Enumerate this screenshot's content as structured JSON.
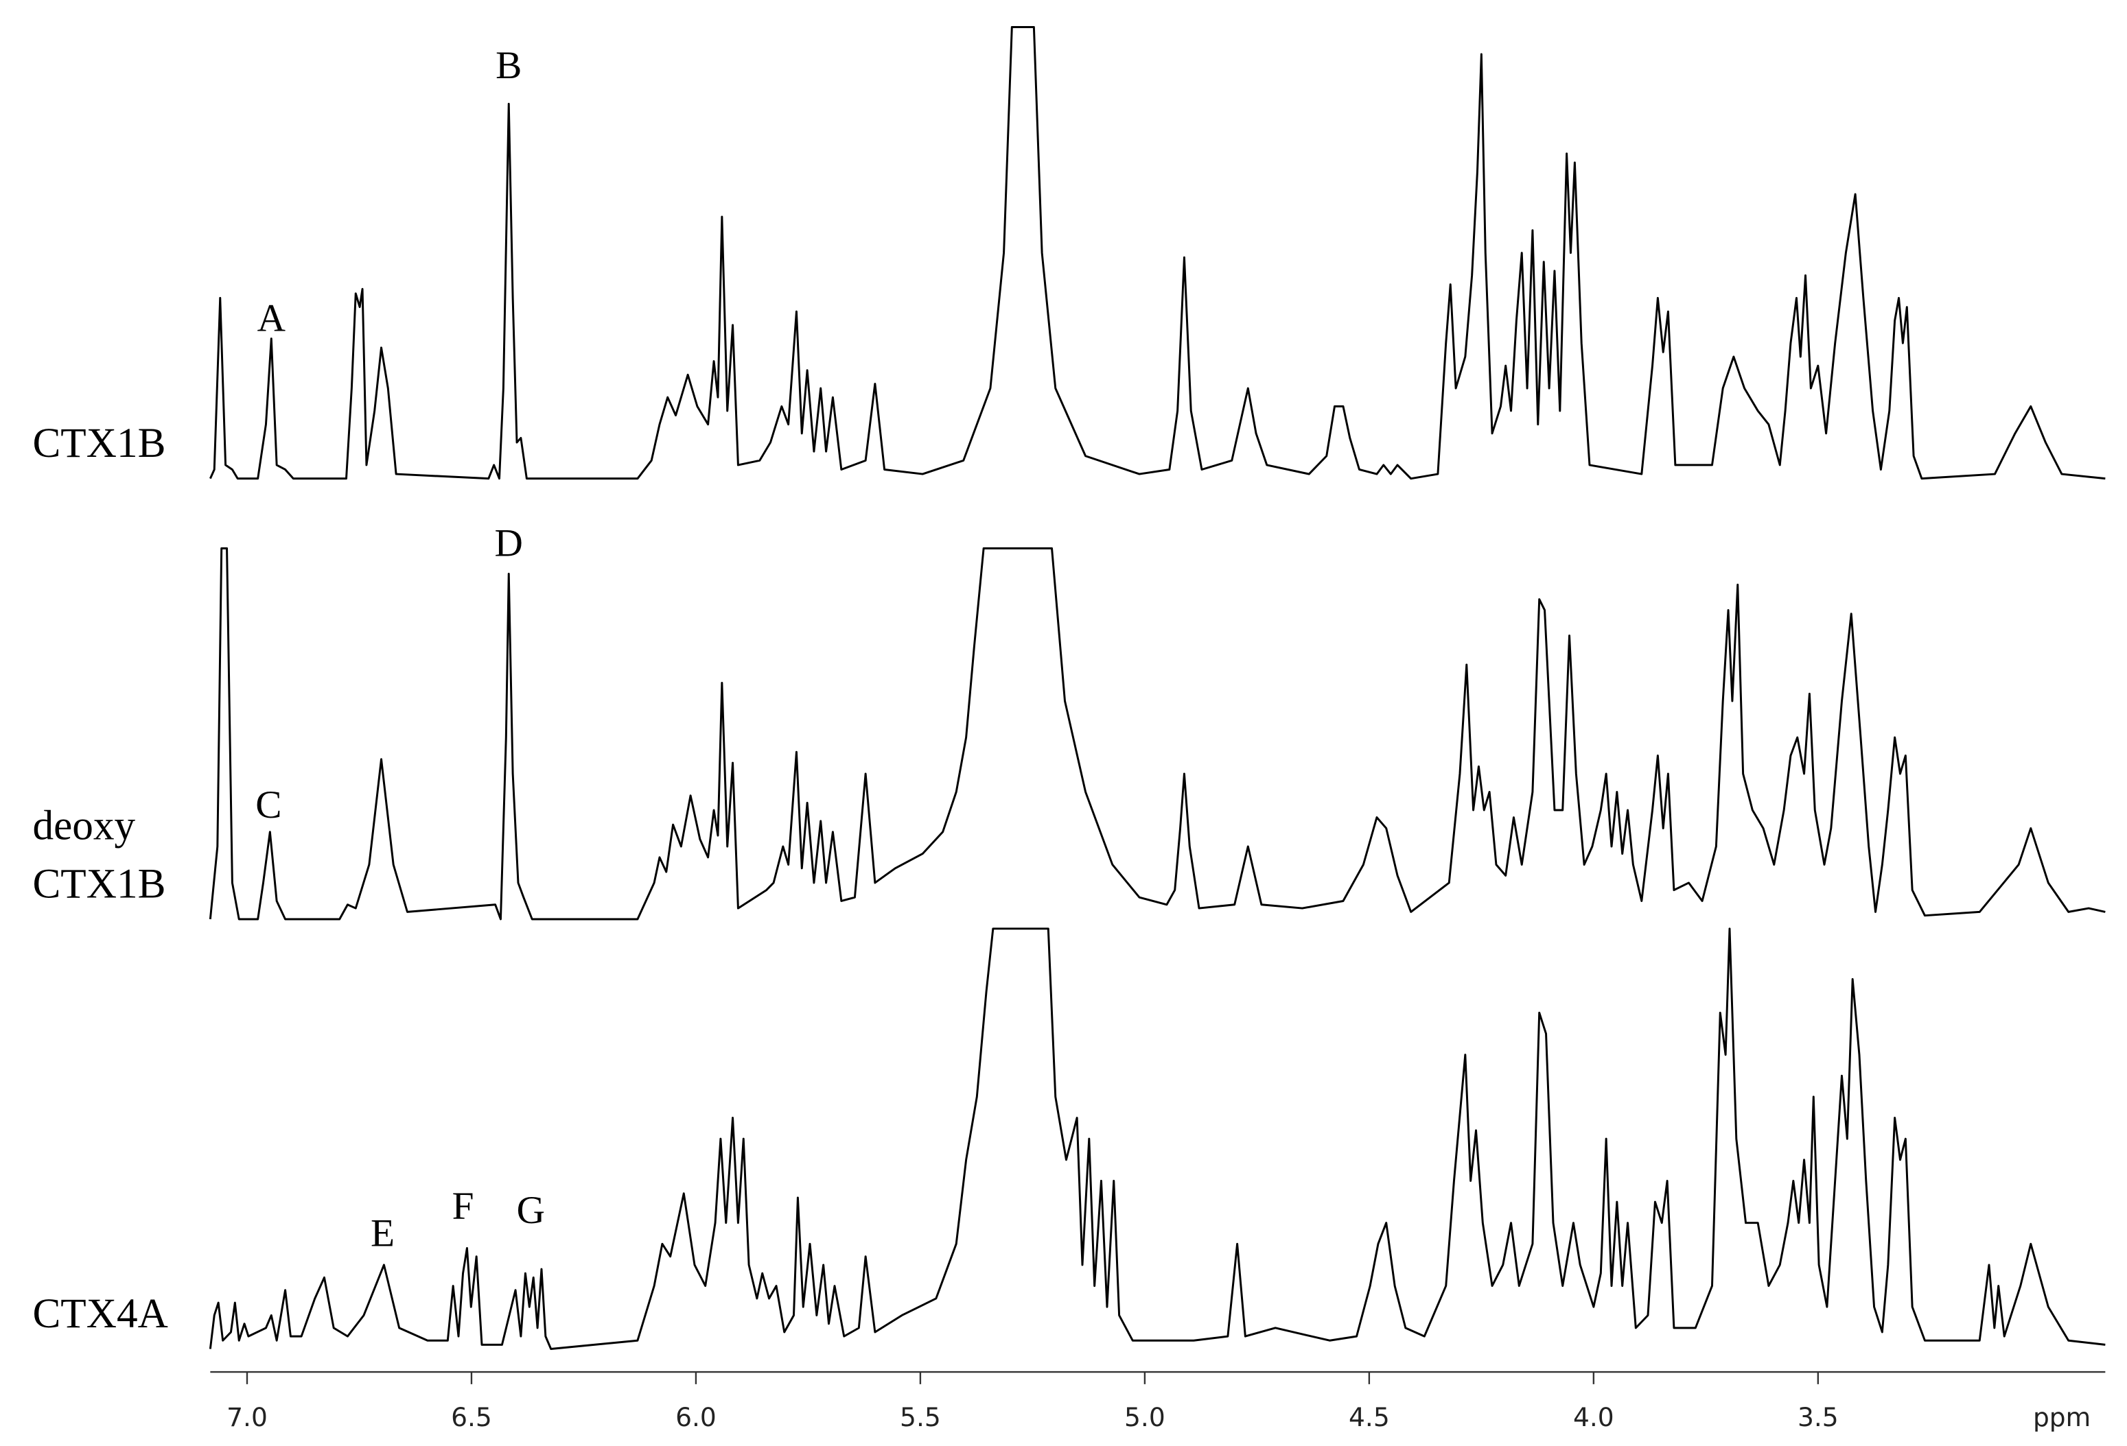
{
  "chart_data": [
    {
      "type": "line",
      "label": [
        "CTX1B"
      ],
      "color": "#000000",
      "xlim": [
        7.082,
        2.86
      ],
      "ylim": [
        0,
        100
      ],
      "annotations": [
        {
          "text": "A",
          "x": 6.946,
          "y": 36
        },
        {
          "text": "B",
          "x": 6.417,
          "y": 92
        }
      ],
      "x": [
        7.082,
        7.073,
        7.06,
        7.048,
        7.033,
        7.021,
        6.976,
        6.958,
        6.946,
        6.934,
        6.915,
        6.897,
        6.779,
        6.767,
        6.758,
        6.749,
        6.743,
        6.734,
        6.716,
        6.701,
        6.686,
        6.668,
        6.462,
        6.45,
        6.438,
        6.429,
        6.417,
        6.408,
        6.399,
        6.39,
        6.377,
        6.13,
        6.099,
        6.081,
        6.063,
        6.045,
        6.018,
        5.997,
        5.973,
        5.96,
        5.951,
        5.942,
        5.93,
        5.918,
        5.906,
        5.858,
        5.834,
        5.809,
        5.794,
        5.776,
        5.764,
        5.752,
        5.737,
        5.722,
        5.71,
        5.695,
        5.676,
        5.622,
        5.601,
        5.58,
        5.495,
        5.404,
        5.344,
        5.314,
        5.296,
        5.247,
        5.229,
        5.199,
        5.132,
        5.012,
        4.945,
        4.927,
        4.912,
        4.897,
        4.873,
        4.806,
        4.788,
        4.77,
        4.752,
        4.728,
        4.634,
        4.595,
        4.577,
        4.558,
        4.543,
        4.522,
        4.483,
        4.468,
        4.452,
        4.437,
        4.407,
        4.347,
        4.329,
        4.319,
        4.307,
        4.286,
        4.271,
        4.259,
        4.25,
        4.241,
        4.226,
        4.207,
        4.196,
        4.184,
        4.172,
        4.16,
        4.148,
        4.136,
        4.124,
        4.111,
        4.099,
        4.087,
        4.075,
        4.06,
        4.051,
        4.042,
        4.027,
        4.009,
        3.893,
        3.869,
        3.857,
        3.845,
        3.834,
        3.818,
        3.736,
        3.712,
        3.688,
        3.664,
        3.634,
        3.61,
        3.585,
        3.573,
        3.561,
        3.548,
        3.539,
        3.528,
        3.516,
        3.5,
        3.482,
        3.462,
        3.438,
        3.417,
        3.399,
        3.378,
        3.36,
        3.341,
        3.329,
        3.32,
        3.311,
        3.302,
        3.287,
        3.269,
        3.106,
        3.061,
        3.026,
        2.993,
        2.957,
        2.86
      ],
      "values": [
        0,
        2,
        40,
        3,
        2,
        0,
        0,
        12,
        31,
        3,
        2,
        0,
        0,
        20,
        41,
        38,
        42,
        3,
        15,
        29,
        20,
        1,
        0,
        3,
        0,
        20,
        83,
        40,
        8,
        9,
        0,
        0,
        4,
        12,
        18,
        14,
        23,
        16,
        12,
        26,
        18,
        58,
        15,
        34,
        3,
        4,
        8,
        16,
        12,
        37,
        10,
        24,
        6,
        20,
        6,
        18,
        2,
        4,
        21,
        2,
        1,
        4,
        20,
        50,
        100,
        100,
        50,
        20,
        5,
        1,
        2,
        15,
        49,
        15,
        2,
        4,
        12,
        20,
        10,
        3,
        1,
        5,
        16,
        16,
        9,
        2,
        1,
        3,
        1,
        3,
        0,
        1,
        30,
        43,
        20,
        27,
        45,
        68,
        94,
        50,
        10,
        16,
        25,
        15,
        35,
        50,
        20,
        55,
        12,
        48,
        20,
        46,
        15,
        72,
        50,
        70,
        30,
        3,
        1,
        25,
        40,
        28,
        37,
        3,
        3,
        20,
        27,
        20,
        15,
        12,
        3,
        15,
        30,
        40,
        27,
        45,
        20,
        25,
        10,
        30,
        50,
        63,
        40,
        15,
        2,
        15,
        35,
        40,
        30,
        38,
        5,
        0,
        1,
        10,
        16,
        8,
        1,
        0
      ]
    },
    {
      "type": "line",
      "label": [
        "deoxy",
        "CTX1B"
      ],
      "color": "#000000",
      "xlim": [
        7.082,
        2.86
      ],
      "ylim": [
        0,
        110
      ],
      "annotations": [
        {
          "text": "C",
          "x": 6.952,
          "y": 32
        },
        {
          "text": "D",
          "x": 6.417,
          "y": 104
        }
      ],
      "x": [
        7.082,
        7.066,
        7.057,
        7.045,
        7.033,
        7.018,
        6.976,
        6.964,
        6.949,
        6.934,
        6.915,
        6.794,
        6.776,
        6.758,
        6.728,
        6.701,
        6.674,
        6.643,
        6.447,
        6.435,
        6.423,
        6.417,
        6.408,
        6.396,
        6.384,
        6.365,
        6.13,
        6.093,
        6.081,
        6.066,
        6.051,
        6.033,
        6.012,
        5.991,
        5.973,
        5.96,
        5.951,
        5.942,
        5.93,
        5.918,
        5.906,
        5.843,
        5.827,
        5.806,
        5.794,
        5.776,
        5.764,
        5.752,
        5.737,
        5.722,
        5.71,
        5.695,
        5.676,
        5.646,
        5.622,
        5.601,
        5.556,
        5.495,
        5.45,
        5.42,
        5.398,
        5.38,
        5.359,
        5.207,
        5.178,
        5.132,
        5.072,
        5.012,
        4.951,
        4.933,
        4.921,
        4.912,
        4.9,
        4.879,
        4.8,
        4.77,
        4.74,
        4.649,
        4.558,
        4.513,
        4.483,
        4.462,
        4.437,
        4.407,
        4.322,
        4.298,
        4.283,
        4.268,
        4.256,
        4.244,
        4.232,
        4.217,
        4.196,
        4.178,
        4.16,
        4.136,
        4.121,
        4.109,
        4.099,
        4.087,
        4.069,
        4.054,
        4.039,
        4.021,
        4.003,
        3.984,
        3.972,
        3.96,
        3.948,
        3.936,
        3.924,
        3.912,
        3.893,
        3.869,
        3.857,
        3.845,
        3.834,
        3.821,
        3.788,
        3.758,
        3.727,
        3.712,
        3.7,
        3.691,
        3.679,
        3.667,
        3.646,
        3.622,
        3.598,
        3.576,
        3.561,
        3.546,
        3.531,
        3.519,
        3.507,
        3.486,
        3.471,
        3.447,
        3.426,
        3.405,
        3.387,
        3.372,
        3.357,
        3.344,
        3.329,
        3.317,
        3.305,
        3.29,
        3.262,
        3.14,
        3.053,
        3.026,
        2.987,
        2.942,
        2.897,
        2.86
      ],
      "values": [
        0,
        20,
        102,
        102,
        10,
        0,
        0,
        10,
        24,
        5,
        0,
        0,
        4,
        3,
        15,
        44,
        15,
        2,
        4,
        0,
        50,
        95,
        40,
        10,
        6,
        0,
        0,
        10,
        17,
        13,
        26,
        20,
        34,
        22,
        17,
        30,
        23,
        65,
        20,
        43,
        3,
        8,
        10,
        20,
        15,
        46,
        14,
        32,
        10,
        27,
        10,
        24,
        5,
        6,
        40,
        10,
        14,
        18,
        24,
        35,
        50,
        75,
        102,
        102,
        60,
        35,
        15,
        6,
        4,
        8,
        25,
        40,
        20,
        3,
        4,
        20,
        4,
        3,
        5,
        15,
        28,
        25,
        12,
        2,
        10,
        40,
        70,
        30,
        42,
        30,
        35,
        15,
        12,
        28,
        15,
        35,
        88,
        85,
        60,
        30,
        30,
        78,
        40,
        15,
        20,
        30,
        40,
        20,
        35,
        18,
        30,
        15,
        5,
        30,
        45,
        25,
        40,
        8,
        10,
        5,
        20,
        60,
        85,
        60,
        92,
        40,
        30,
        25,
        15,
        30,
        45,
        50,
        40,
        62,
        30,
        15,
        25,
        60,
        84,
        50,
        20,
        2,
        15,
        30,
        50,
        40,
        45,
        8,
        1,
        2,
        15,
        25,
        10,
        2,
        3,
        2
      ]
    },
    {
      "type": "line",
      "label": [
        "CTX4A"
      ],
      "color": "#000000",
      "xlim": [
        7.082,
        2.86
      ],
      "ylim": [
        0,
        100
      ],
      "annotations": [
        {
          "text": "E",
          "x": 6.698,
          "y": 28
        },
        {
          "text": "F",
          "x": 6.519,
          "y": 34.5
        },
        {
          "text": "G",
          "x": 6.368,
          "y": 33.5
        }
      ],
      "xlabel": "ppm",
      "xticks": [
        {
          "value": 7,
          "label": "7.0"
        },
        6.5,
        {
          "value": 6,
          "label": "6.0"
        },
        5.5,
        {
          "value": 5,
          "label": "5.0"
        },
        4.5,
        {
          "value": 4,
          "label": "4.0"
        },
        3.5
      ],
      "x": [
        7.082,
        7.073,
        7.064,
        7.054,
        7.036,
        7.027,
        7.018,
        7.006,
        6.997,
        6.958,
        6.946,
        6.934,
        6.915,
        6.903,
        6.879,
        6.849,
        6.828,
        6.807,
        6.776,
        6.74,
        6.695,
        6.661,
        6.598,
        6.553,
        6.541,
        6.529,
        6.519,
        6.51,
        6.501,
        6.489,
        6.477,
        6.432,
        6.402,
        6.39,
        6.38,
        6.371,
        6.362,
        6.353,
        6.344,
        6.335,
        6.323,
        6.13,
        6.093,
        6.075,
        6.057,
        6.027,
        6.003,
        5.979,
        5.957,
        5.945,
        5.933,
        5.918,
        5.906,
        5.894,
        5.882,
        5.864,
        5.852,
        5.837,
        5.821,
        5.803,
        5.782,
        5.773,
        5.761,
        5.746,
        5.731,
        5.716,
        5.704,
        5.691,
        5.67,
        5.637,
        5.622,
        5.601,
        5.541,
        5.465,
        5.42,
        5.398,
        5.374,
        5.353,
        5.338,
        5.215,
        5.199,
        5.175,
        5.163,
        5.151,
        5.139,
        5.124,
        5.112,
        5.097,
        5.084,
        5.069,
        5.057,
        5.027,
        4.951,
        4.891,
        4.815,
        4.794,
        4.776,
        4.709,
        4.588,
        4.528,
        4.498,
        4.48,
        4.462,
        4.443,
        4.419,
        4.377,
        4.329,
        4.311,
        4.286,
        4.274,
        4.262,
        4.247,
        4.226,
        4.202,
        4.184,
        4.166,
        4.136,
        4.121,
        4.106,
        4.09,
        4.069,
        4.045,
        4.03,
        4.0,
        3.984,
        3.972,
        3.96,
        3.948,
        3.936,
        3.924,
        3.906,
        3.879,
        3.863,
        3.848,
        3.836,
        3.821,
        3.773,
        3.736,
        3.718,
        3.706,
        3.697,
        3.682,
        3.661,
        3.634,
        3.61,
        3.585,
        3.567,
        3.555,
        3.543,
        3.531,
        3.519,
        3.51,
        3.498,
        3.48,
        3.462,
        3.447,
        3.435,
        3.423,
        3.408,
        3.393,
        3.375,
        3.357,
        3.344,
        3.329,
        3.317,
        3.305,
        3.29,
        3.262,
        3.14,
        3.119,
        3.107,
        3.098,
        3.085,
        3.049,
        3.026,
        2.987,
        2.942,
        2.86
      ],
      "values": [
        0,
        8,
        11,
        2,
        4,
        11,
        2,
        6,
        3,
        5,
        8,
        2,
        14,
        3,
        3,
        12,
        17,
        5,
        3,
        8,
        20,
        5,
        2,
        2,
        15,
        3,
        18,
        24,
        10,
        22,
        1,
        1,
        14,
        3,
        18,
        10,
        17,
        5,
        19,
        3,
        0,
        2,
        15,
        25,
        22,
        37,
        20,
        15,
        30,
        50,
        30,
        55,
        30,
        50,
        20,
        12,
        18,
        12,
        15,
        4,
        8,
        36,
        10,
        25,
        8,
        20,
        6,
        15,
        3,
        5,
        22,
        4,
        8,
        12,
        25,
        45,
        60,
        85,
        100,
        100,
        60,
        45,
        50,
        55,
        20,
        50,
        15,
        40,
        10,
        40,
        8,
        2,
        2,
        2,
        3,
        25,
        3,
        5,
        2,
        3,
        15,
        25,
        30,
        15,
        5,
        3,
        15,
        40,
        70,
        40,
        52,
        30,
        15,
        20,
        30,
        15,
        25,
        80,
        75,
        30,
        15,
        30,
        20,
        10,
        18,
        50,
        15,
        35,
        15,
        30,
        5,
        8,
        35,
        30,
        40,
        5,
        5,
        15,
        80,
        70,
        100,
        50,
        30,
        30,
        15,
        20,
        30,
        40,
        30,
        45,
        30,
        60,
        20,
        10,
        40,
        65,
        50,
        88,
        70,
        40,
        10,
        4,
        20,
        55,
        45,
        50,
        10,
        2,
        2,
        20,
        5,
        15,
        3,
        15,
        25,
        10,
        2,
        1
      ]
    }
  ]
}
